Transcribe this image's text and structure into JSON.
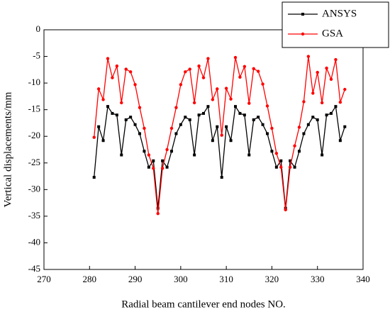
{
  "chart_data": {
    "type": "line",
    "xlabel": "Radial beam cantilever end nodes NO.",
    "ylabel": "Vertical displacements/mm",
    "x": [
      281,
      282,
      283,
      284,
      285,
      286,
      287,
      288,
      289,
      290,
      291,
      292,
      293,
      294,
      295,
      296,
      297,
      298,
      299,
      300,
      301,
      302,
      303,
      304,
      305,
      306,
      307,
      308,
      309,
      310,
      311,
      312,
      313,
      314,
      315,
      316,
      317,
      318,
      319,
      320,
      321,
      322,
      323,
      324,
      325,
      326,
      327,
      328,
      329,
      330,
      331,
      332,
      333,
      334,
      335,
      336
    ],
    "series": [
      {
        "name": "ANSYS",
        "color": "#000000",
        "marker": "square",
        "values": [
          -27.7,
          -18.2,
          -20.8,
          -14.4,
          -15.7,
          -16.0,
          -23.5,
          -16.9,
          -16.4,
          -17.8,
          -19.5,
          -22.8,
          -25.8,
          -24.6,
          -33.5,
          -24.6,
          -25.8,
          -22.8,
          -19.5,
          -17.8,
          -16.4,
          -16.9,
          -23.5,
          -16.0,
          -15.7,
          -14.4,
          -20.8,
          -18.2,
          -27.7,
          -18.2,
          -20.8,
          -14.4,
          -15.7,
          -16.0,
          -23.5,
          -16.9,
          -16.4,
          -17.8,
          -19.5,
          -22.8,
          -25.8,
          -24.6,
          -33.5,
          -24.6,
          -25.8,
          -22.8,
          -19.5,
          -17.8,
          -16.4,
          -16.9,
          -23.5,
          -16.0,
          -15.7,
          -14.4,
          -20.8,
          -18.2
        ]
      },
      {
        "name": "GSA",
        "color": "#ff0000",
        "marker": "circle",
        "values": [
          -20.2,
          -11.1,
          -13.1,
          -5.4,
          -9.0,
          -6.8,
          -13.7,
          -7.4,
          -7.9,
          -10.3,
          -14.6,
          -18.5,
          -23.5,
          -26.0,
          -34.5,
          -26.0,
          -22.5,
          -18.5,
          -14.6,
          -10.3,
          -7.9,
          -7.4,
          -13.7,
          -6.8,
          -9.0,
          -5.4,
          -13.1,
          -11.1,
          -19.8,
          -11.0,
          -13.0,
          -5.2,
          -8.9,
          -6.9,
          -13.8,
          -7.3,
          -7.8,
          -10.2,
          -14.3,
          -18.5,
          -23.2,
          -25.8,
          -33.8,
          -25.8,
          -21.8,
          -18.3,
          -13.5,
          -5.0,
          -11.9,
          -8.0,
          -13.7,
          -7.2,
          -9.3,
          -5.6,
          -13.6,
          -11.2
        ]
      }
    ],
    "xlim": [
      270,
      340
    ],
    "xticks": [
      270,
      280,
      290,
      300,
      310,
      320,
      330,
      340
    ],
    "ylim": [
      -45,
      0
    ],
    "yticks": [
      -45,
      -40,
      -35,
      -30,
      -25,
      -20,
      -15,
      -10,
      -5,
      0
    ],
    "legend": "upper right"
  }
}
